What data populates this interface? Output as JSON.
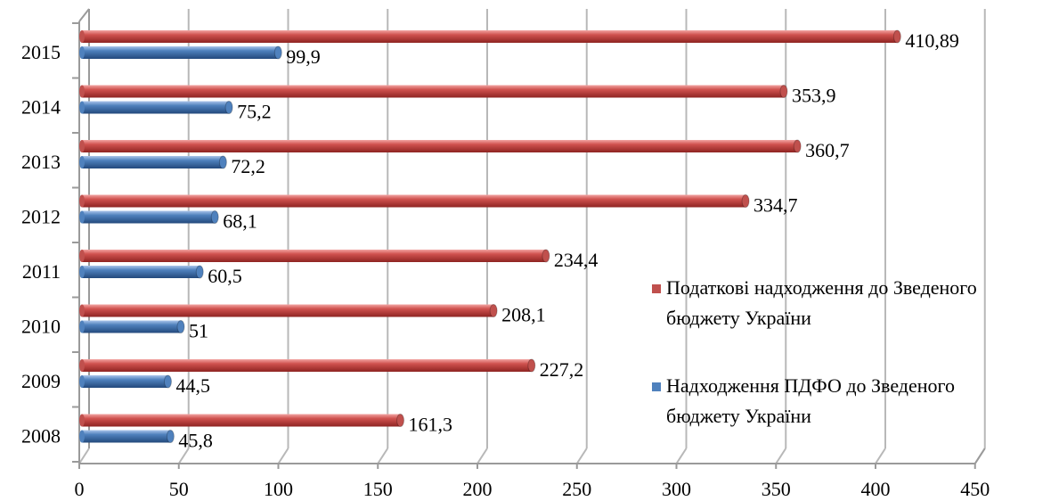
{
  "chart_data": {
    "type": "bar",
    "orientation": "horizontal",
    "categories": [
      "2015",
      "2014",
      "2013",
      "2012",
      "2011",
      "2010",
      "2009",
      "2008"
    ],
    "series": [
      {
        "name": "Податкові надходження до Зведеного бюджету України",
        "legend_lines": [
          "Податкові надходження до Зведеного",
          "бюджету України"
        ],
        "color": "#C0504D",
        "values": [
          410.89,
          353.9,
          360.7,
          334.7,
          234.4,
          208.1,
          227.2,
          161.3
        ],
        "labels": [
          "410,89",
          "353,9",
          "360,7",
          "334,7",
          "234,4",
          "208,1",
          "227,2",
          "161,3"
        ]
      },
      {
        "name": "Надходження  ПДФО до Зведеного бюджету України",
        "legend_lines": [
          "Надходження  ПДФО до Зведеного",
          "бюджету України"
        ],
        "color": "#4F81BD",
        "values": [
          99.9,
          75.2,
          72.2,
          68.1,
          60.5,
          51,
          44.5,
          45.8
        ],
        "labels": [
          "99,9",
          "75,2",
          "72,2",
          "68,1",
          "60,5",
          "51",
          "44,5",
          "45,8"
        ]
      }
    ],
    "x_ticks": [
      "0",
      "50",
      "100",
      "150",
      "200",
      "250",
      "300",
      "350",
      "400",
      "450"
    ],
    "xlim": [
      0,
      450
    ],
    "grid": true,
    "legend_position": "right",
    "title": "",
    "xlabel": "",
    "ylabel": ""
  }
}
